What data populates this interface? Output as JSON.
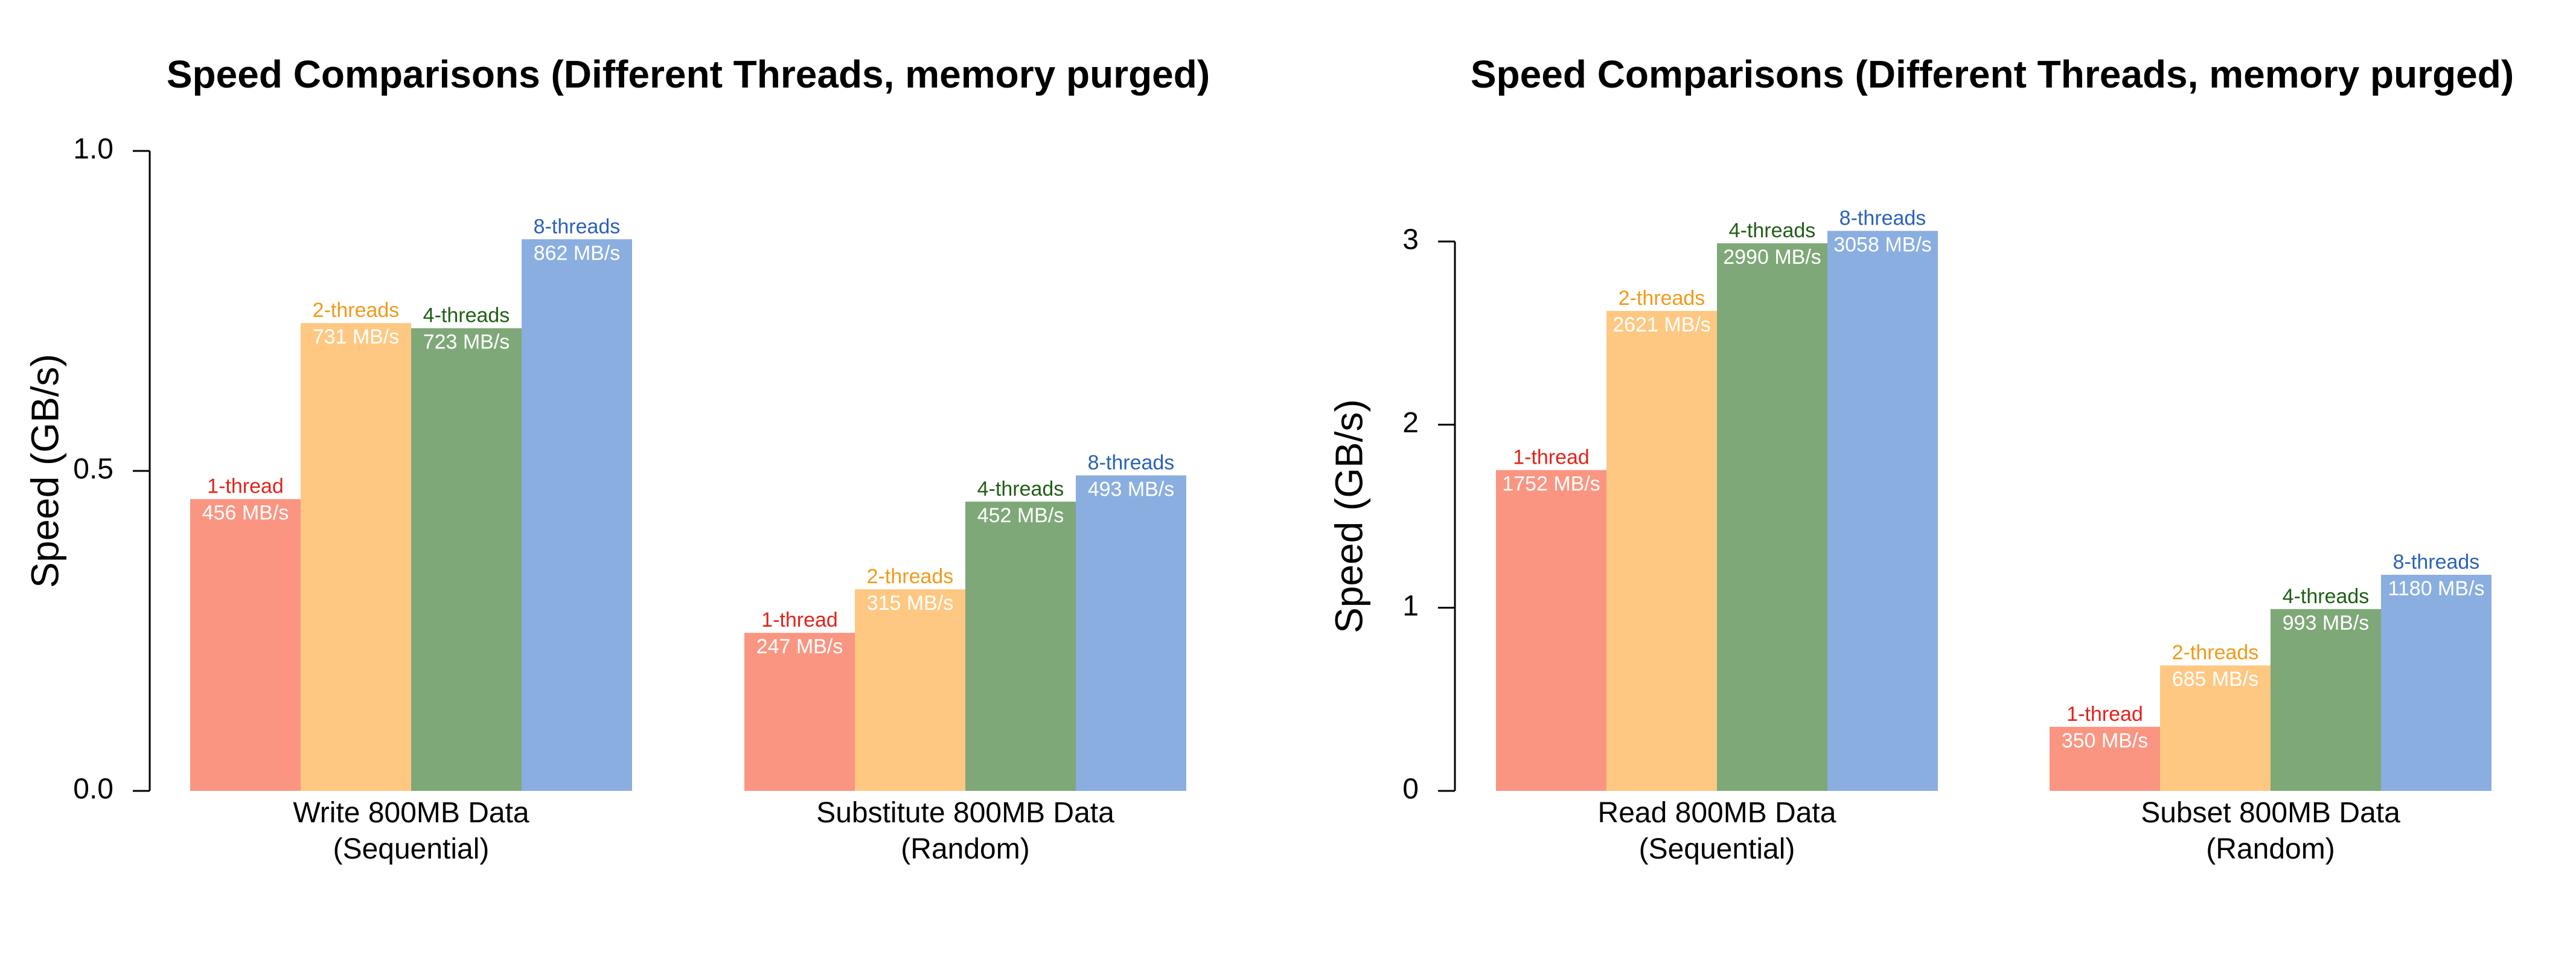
{
  "chart_data": [
    {
      "type": "bar",
      "title": "Speed Comparisons (Different Threads, memory purged)",
      "ylabel": "Speed (GB/s)",
      "xlabel": "",
      "ylim": [
        0,
        1.0
      ],
      "yticks": [
        0.0,
        0.5,
        1.0
      ],
      "ytick_labels": [
        "0.0",
        "0.5",
        "1.0"
      ],
      "grid": false,
      "legend": "none",
      "categories": [
        [
          "Write 800MB Data",
          "(Sequential)"
        ],
        [
          "Substitute 800MB Data",
          "(Random)"
        ]
      ],
      "series": [
        {
          "name": "1-thread",
          "values": [
            0.456,
            0.247
          ],
          "labels": [
            "456 MB/s",
            "247 MB/s"
          ]
        },
        {
          "name": "2-threads",
          "values": [
            0.731,
            0.315
          ],
          "labels": [
            "731 MB/s",
            "315 MB/s"
          ]
        },
        {
          "name": "4-threads",
          "values": [
            0.723,
            0.452
          ],
          "labels": [
            "723 MB/s",
            "452 MB/s"
          ]
        },
        {
          "name": "8-threads",
          "values": [
            0.862,
            0.493
          ],
          "labels": [
            "862 MB/s",
            "493 MB/s"
          ]
        }
      ]
    },
    {
      "type": "bar",
      "title": "Speed Comparisons (Different Threads, memory purged)",
      "ylabel": "Speed (GB/s)",
      "xlabel": "",
      "ylim": [
        0,
        3.0
      ],
      "yticks": [
        0,
        1,
        2,
        3
      ],
      "ytick_labels": [
        "0",
        "1",
        "2",
        "3"
      ],
      "grid": false,
      "legend": "none",
      "categories": [
        [
          "Read 800MB Data",
          "(Sequential)"
        ],
        [
          "Subset 800MB Data",
          "(Random)"
        ]
      ],
      "series": [
        {
          "name": "1-thread",
          "values": [
            1.752,
            0.35
          ],
          "labels": [
            "1752 MB/s",
            "350 MB/s"
          ]
        },
        {
          "name": "2-threads",
          "values": [
            2.621,
            0.685
          ],
          "labels": [
            "2621 MB/s",
            "685 MB/s"
          ]
        },
        {
          "name": "4-threads",
          "values": [
            2.99,
            0.993
          ],
          "labels": [
            "2990 MB/s",
            "993 MB/s"
          ]
        },
        {
          "name": "8-threads",
          "values": [
            3.058,
            1.18
          ],
          "labels": [
            "3058 MB/s",
            "1180 MB/s"
          ]
        }
      ]
    }
  ],
  "colors": {
    "bars": [
      "#fa9582",
      "#fec882",
      "#7fa878",
      "#8aaee0"
    ],
    "series_text": [
      "#e2231a",
      "#f09a1a",
      "#1f5f14",
      "#2b62b8"
    ],
    "value_text": "#ffffff",
    "axis": "#000000"
  }
}
